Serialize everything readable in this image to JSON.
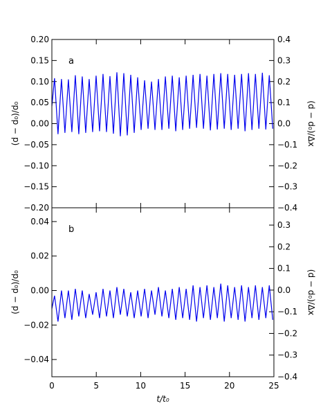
{
  "chart_data": [
    {
      "type": "line",
      "panel_label": "a",
      "xlabel": "",
      "ylabel": "(d − d₀)/d₀",
      "ylabel_right": "(d − d₀)/Δx",
      "xlim": [
        0,
        25
      ],
      "ylim": [
        -0.2,
        0.2
      ],
      "ylim_right": [
        -0.4,
        0.4
      ],
      "yticks": [
        "0.20",
        "0.15",
        "0.10",
        "0.05",
        "0.00",
        "−0.05",
        "−0.10",
        "−0.15",
        "−0.20"
      ],
      "yticks_right": [
        "0.4",
        "0.3",
        "0.2",
        "0.1",
        "0.0",
        "−0.1",
        "−0.2",
        "−0.3",
        "−0.4"
      ],
      "grid": false,
      "color": "#0000ee",
      "oscillation": {
        "period": 0.78,
        "peak_values": [
          0.108,
          0.106,
          0.105,
          0.115,
          0.112,
          0.106,
          0.114,
          0.118,
          0.113,
          0.122,
          0.12,
          0.116,
          0.11,
          0.103,
          0.1,
          0.106,
          0.112,
          0.114,
          0.11,
          0.114,
          0.116,
          0.118,
          0.114,
          0.118,
          0.12,
          0.118,
          0.116,
          0.118,
          0.12,
          0.118,
          0.121,
          0.115
        ],
        "trough_values": [
          -0.025,
          -0.022,
          -0.02,
          -0.025,
          -0.022,
          -0.02,
          -0.018,
          -0.02,
          -0.024,
          -0.03,
          -0.028,
          -0.022,
          -0.015,
          -0.012,
          -0.015,
          -0.015,
          -0.012,
          -0.018,
          -0.015,
          -0.012,
          -0.01,
          -0.012,
          -0.016,
          -0.014,
          -0.012,
          -0.015,
          -0.012,
          -0.018,
          -0.015,
          -0.012,
          -0.014,
          -0.012
        ]
      }
    },
    {
      "type": "line",
      "panel_label": "b",
      "xlabel": "t/t₀",
      "ylabel": "(d − d₀)/d₀",
      "ylabel_right": "(d − d₀)/Δx",
      "xlim": [
        0,
        25
      ],
      "ylim": [
        -0.05,
        0.048
      ],
      "ylim_right": [
        -0.4,
        0.38
      ],
      "xticks": [
        "0",
        "5",
        "10",
        "15",
        "20",
        "25"
      ],
      "yticks": [
        "0.04",
        "0.02",
        "0.00",
        "−0.02",
        "−0.04"
      ],
      "yticks_right": [
        "0.3",
        "0.2",
        "0.1",
        "0.0",
        "−0.1",
        "−0.2",
        "−0.3",
        "−0.4"
      ],
      "grid": false,
      "color": "#0000ee",
      "oscillation": {
        "period": 0.78,
        "peak_values": [
          -0.003,
          0.0,
          0.0,
          0.001,
          0.0,
          -0.002,
          -0.001,
          0.001,
          0.0,
          0.002,
          0.001,
          -0.001,
          0.0,
          0.001,
          0.0,
          0.002,
          0.0,
          0.001,
          0.002,
          0.001,
          0.003,
          0.002,
          0.003,
          0.002,
          0.004,
          0.003,
          0.002,
          0.003,
          0.002,
          0.003,
          0.002,
          0.003
        ],
        "trough_values": [
          -0.018,
          -0.016,
          -0.017,
          -0.015,
          -0.016,
          -0.014,
          -0.016,
          -0.015,
          -0.016,
          -0.014,
          -0.015,
          -0.016,
          -0.015,
          -0.016,
          -0.014,
          -0.015,
          -0.016,
          -0.017,
          -0.016,
          -0.017,
          -0.018,
          -0.016,
          -0.017,
          -0.016,
          -0.018,
          -0.016,
          -0.017,
          -0.018,
          -0.016,
          -0.017,
          -0.016,
          -0.017
        ]
      }
    }
  ]
}
